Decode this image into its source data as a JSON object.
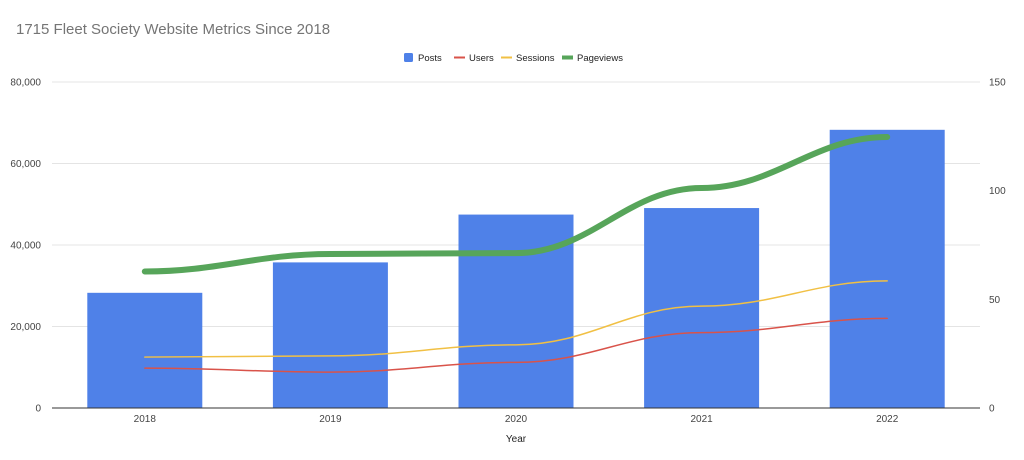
{
  "chart_data": {
    "type": "bar",
    "title": "1715 Fleet Society Website Metrics Since 2018",
    "xlabel": "Year",
    "ylabel": "",
    "categories": [
      "2018",
      "2019",
      "2020",
      "2021",
      "2022"
    ],
    "ylim_left": [
      0,
      80000
    ],
    "ylim_right": [
      0,
      150
    ],
    "yticks_left": [
      "0",
      "20,000",
      "40,000",
      "60,000",
      "80,000"
    ],
    "yticks_right": [
      "0",
      "50",
      "100",
      "150"
    ],
    "grid": true,
    "legend_position": "top",
    "series": [
      {
        "name": "Posts",
        "kind": "bar",
        "axis": "right",
        "color": "#4f81e8",
        "values": [
          53,
          67,
          89,
          92,
          128
        ]
      },
      {
        "name": "Users",
        "kind": "line",
        "axis": "left",
        "color": "#d9534a",
        "values": [
          9800,
          8800,
          11200,
          18500,
          22000
        ]
      },
      {
        "name": "Sessions",
        "kind": "line",
        "axis": "left",
        "color": "#f1c044",
        "values": [
          12500,
          12800,
          15500,
          25000,
          31200
        ]
      },
      {
        "name": "Pageviews",
        "kind": "line",
        "axis": "left",
        "color": "#57a55a",
        "values": [
          33500,
          37800,
          38000,
          54000,
          66500
        ]
      }
    ]
  }
}
